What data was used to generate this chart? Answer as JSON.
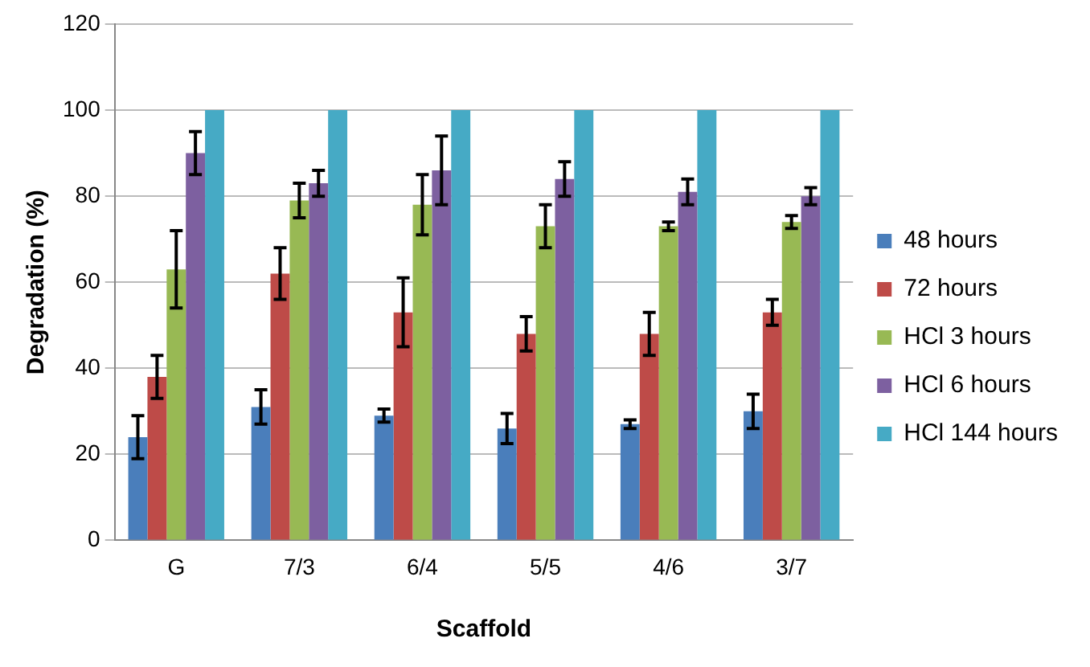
{
  "chart_data": {
    "type": "bar",
    "xlabel": "Scaffold",
    "ylabel": "Degradation (%)",
    "categories": [
      "G",
      "7/3",
      "6/4",
      "5/5",
      "4/6",
      "3/7"
    ],
    "series": [
      {
        "name": "48 hours",
        "color": "#4a7ebb",
        "values": [
          24,
          31,
          29,
          26,
          27,
          30
        ],
        "errors": [
          5,
          4,
          1.5,
          3.5,
          1,
          4
        ]
      },
      {
        "name": "72 hours",
        "color": "#be4b48",
        "values": [
          38,
          62,
          53,
          48,
          48,
          53
        ],
        "errors": [
          5,
          6,
          8,
          4,
          5,
          3
        ]
      },
      {
        "name": "HCl 3 hours",
        "color": "#98b954",
        "values": [
          63,
          79,
          78,
          73,
          73,
          74
        ],
        "errors": [
          9,
          4,
          7,
          5,
          1,
          1.5
        ]
      },
      {
        "name": "HCl 6 hours",
        "color": "#7d60a0",
        "values": [
          90,
          83,
          86,
          84,
          81,
          80
        ],
        "errors": [
          5,
          3,
          8,
          4,
          3,
          2
        ]
      },
      {
        "name": "HCl 144 hours",
        "color": "#46aac5",
        "values": [
          100,
          100,
          100,
          100,
          100,
          100
        ]
      }
    ],
    "ylim": [
      0,
      120
    ],
    "yticks": [
      0,
      20,
      40,
      60,
      80,
      100,
      120
    ],
    "grid": "y",
    "legend": "right"
  }
}
